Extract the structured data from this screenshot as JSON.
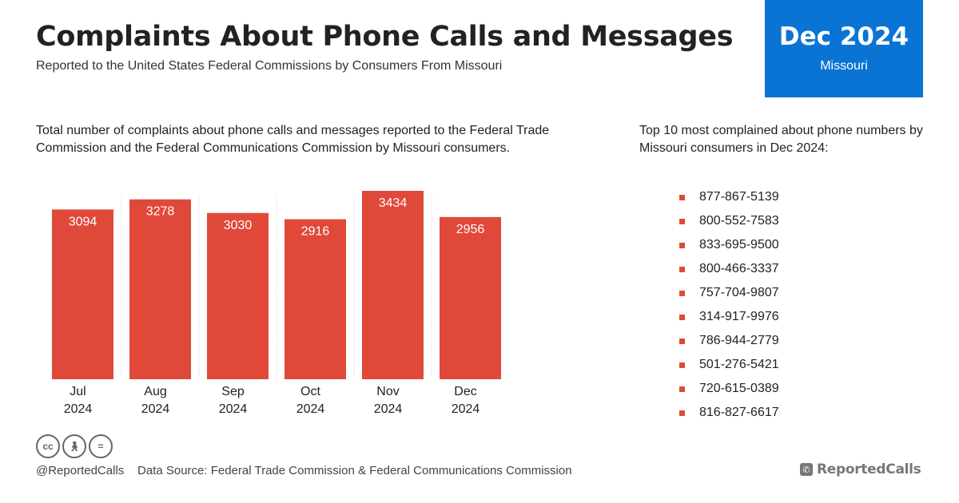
{
  "header": {
    "title": "Complaints About Phone Calls and Messages",
    "subtitle": "Reported to the United States Federal Commissions by Consumers From Missouri",
    "badge_date": "Dec 2024",
    "badge_region": "Missouri"
  },
  "chart_description": "Total number of complaints about phone calls and messages reported to the Federal Trade Commission and the Federal Communications Commission by Missouri consumers.",
  "chart_data": {
    "type": "bar",
    "categories": [
      [
        "Jul",
        "2024"
      ],
      [
        "Aug",
        "2024"
      ],
      [
        "Sep",
        "2024"
      ],
      [
        "Oct",
        "2024"
      ],
      [
        "Nov",
        "2024"
      ],
      [
        "Dec",
        "2024"
      ]
    ],
    "values": [
      3094,
      3278,
      3030,
      2916,
      3434,
      2956
    ],
    "bar_color": "#e0493a",
    "grid": "dotted vertical separators",
    "title": "",
    "xlabel": "",
    "ylabel": ""
  },
  "top_numbers": {
    "description": "Top 10 most complained about phone numbers by Missouri consumers in Dec 2024:",
    "items": [
      "877-867-5139",
      "800-552-7583",
      "833-695-9500",
      "800-466-3337",
      "757-704-9807",
      "314-917-9976",
      "786-944-2779",
      "501-276-5421",
      "720-615-0389",
      "816-827-6617"
    ]
  },
  "footer": {
    "license_icons": [
      "cc-icon",
      "by-icon",
      "nd-icon"
    ],
    "handle": "@ReportedCalls",
    "source": "Data Source: Federal Trade Commission & Federal Communications Commission",
    "brand": "ReportedCalls"
  },
  "colors": {
    "accent": "#0a74d4",
    "bar": "#e0493a",
    "text": "#222222"
  }
}
